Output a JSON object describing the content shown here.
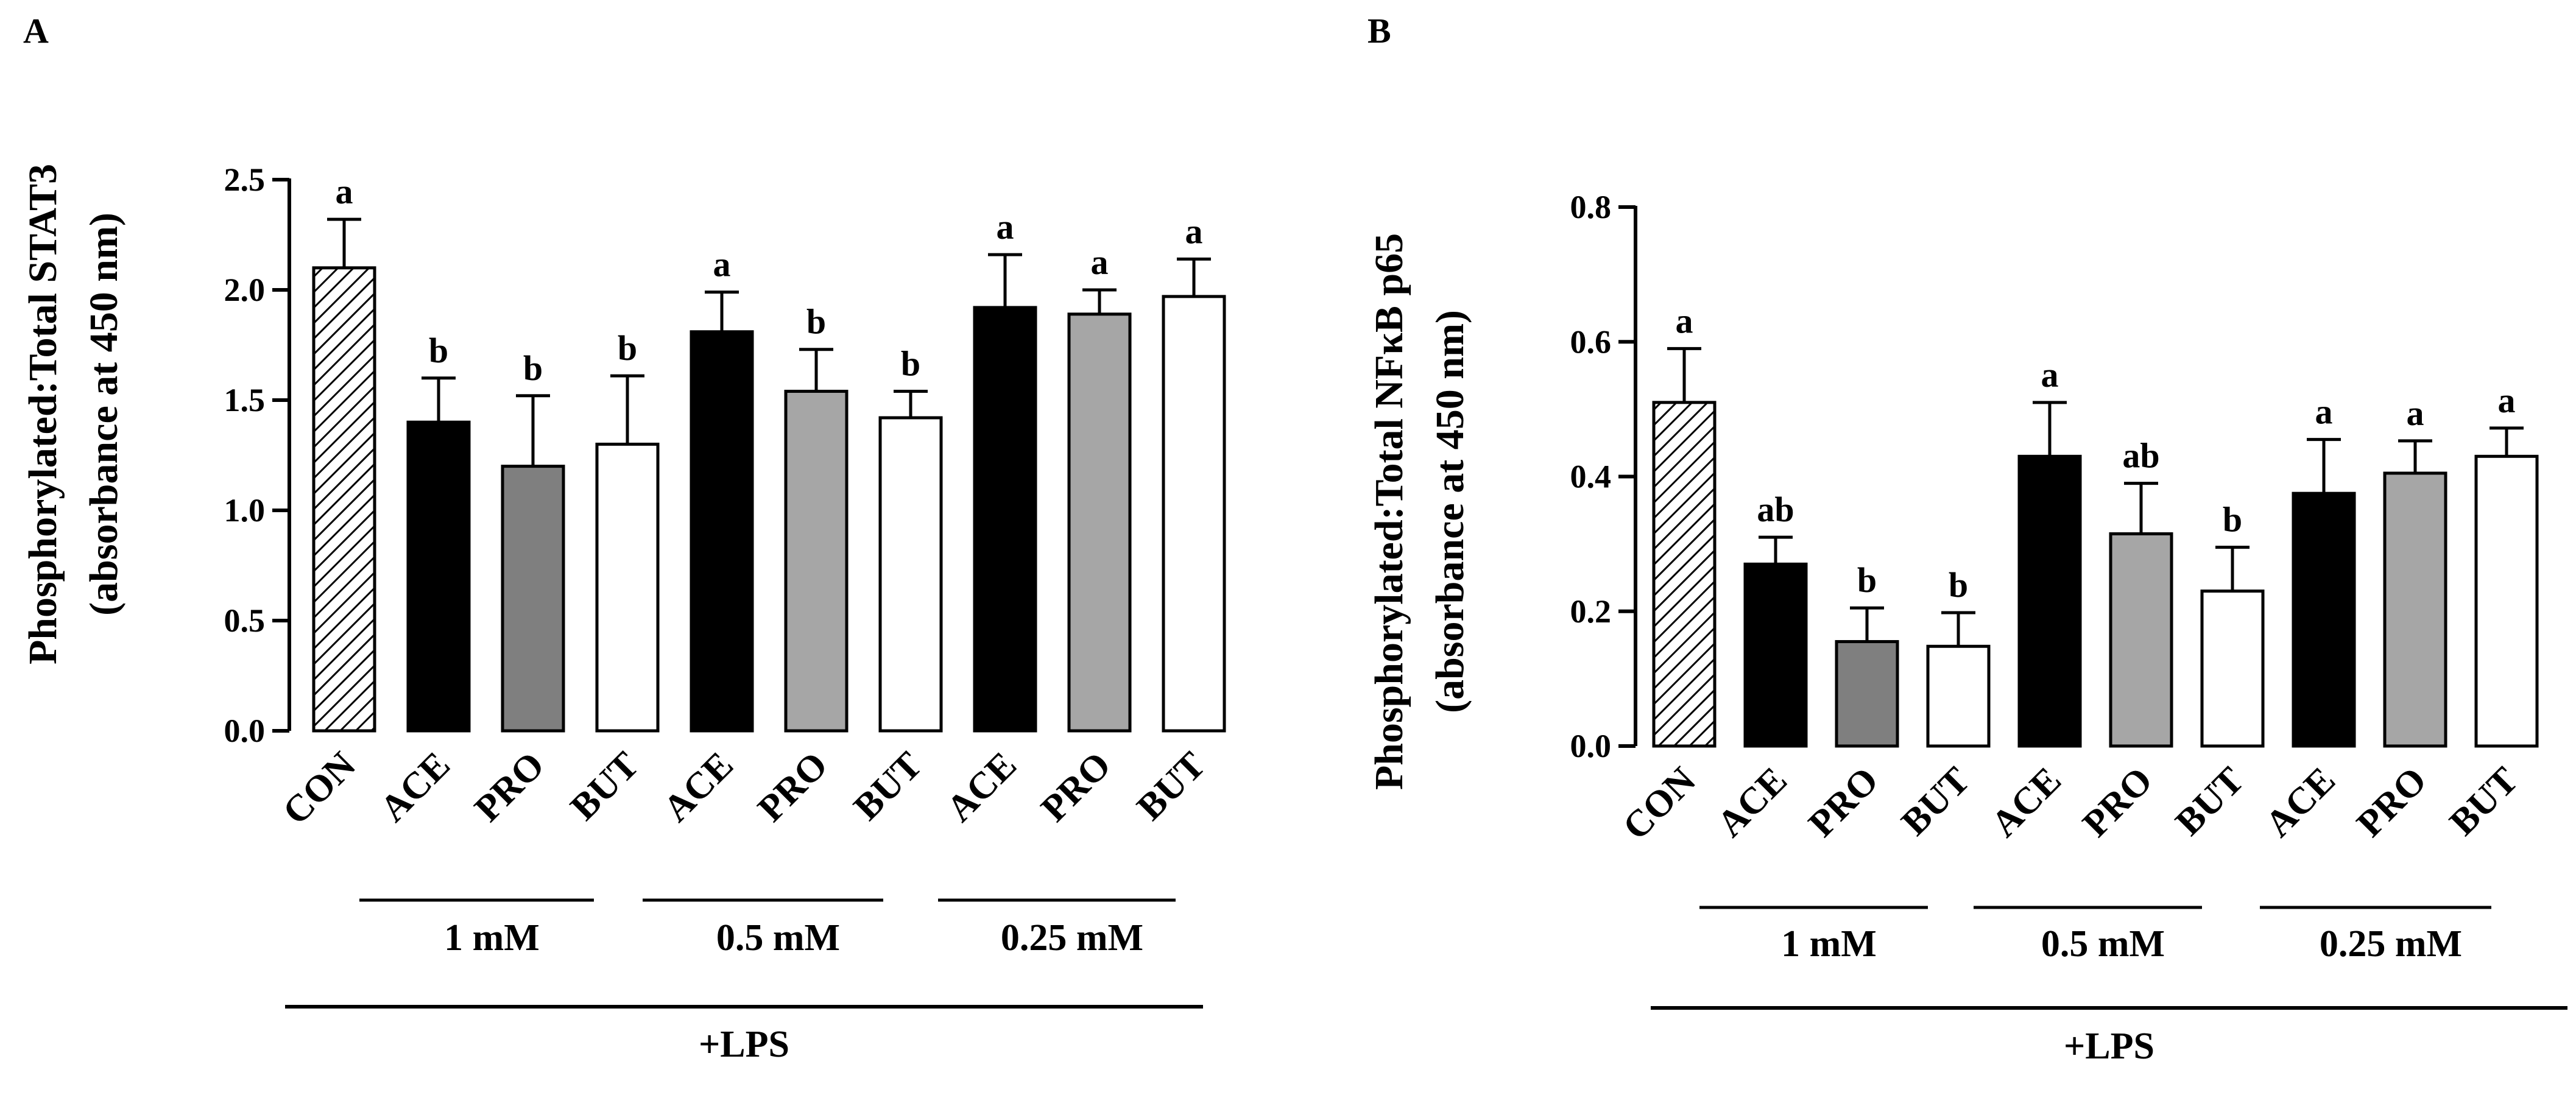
{
  "chart_data": [
    {
      "type": "bar",
      "panel": "A",
      "ylabel_line1": "Phosphorylated:Total STAT3",
      "ylabel_line2": "(absorbance at 450 nm)",
      "ylim": [
        0,
        2.5
      ],
      "yticks": [
        "0.0",
        "0.5",
        "1.0",
        "1.5",
        "2.0",
        "2.5"
      ],
      "categories": [
        "CON",
        "ACE",
        "PRO",
        "BUT",
        "ACE",
        "PRO",
        "BUT",
        "ACE",
        "PRO",
        "BUT"
      ],
      "values": [
        2.1,
        1.4,
        1.2,
        1.3,
        1.81,
        1.54,
        1.42,
        1.92,
        1.89,
        1.97
      ],
      "errors": [
        0.22,
        0.2,
        0.32,
        0.31,
        0.18,
        0.19,
        0.12,
        0.24,
        0.11,
        0.17
      ],
      "significance": [
        "a",
        "b",
        "b",
        "b",
        "a",
        "b",
        "b",
        "a",
        "a",
        "a"
      ],
      "fills": [
        "hatch",
        "#000000",
        "#7f7f7f",
        "#ffffff",
        "#000000",
        "#a6a6a6",
        "#ffffff",
        "#000000",
        "#a6a6a6",
        "#ffffff"
      ],
      "groups": [
        "1 mM",
        "0.5 mM",
        "0.25 mM"
      ],
      "treatment": "+LPS"
    },
    {
      "type": "bar",
      "panel": "B",
      "ylabel_line1": "Phosphorylated:Total NFκB p65",
      "ylabel_line2": "(absorbance at 450 nm)",
      "ylim": [
        0,
        0.8
      ],
      "yticks": [
        "0.0",
        "0.2",
        "0.4",
        "0.6",
        "0.8"
      ],
      "categories": [
        "CON",
        "ACE",
        "PRO",
        "BUT",
        "ACE",
        "PRO",
        "BUT",
        "ACE",
        "PRO",
        "BUT"
      ],
      "values": [
        0.51,
        0.27,
        0.155,
        0.148,
        0.43,
        0.315,
        0.23,
        0.375,
        0.405,
        0.43
      ],
      "errors": [
        0.08,
        0.04,
        0.05,
        0.05,
        0.08,
        0.075,
        0.065,
        0.08,
        0.048,
        0.042
      ],
      "significance": [
        "a",
        "ab",
        "b",
        "b",
        "a",
        "ab",
        "b",
        "a",
        "a",
        "a"
      ],
      "fills": [
        "hatch",
        "#000000",
        "#7f7f7f",
        "#ffffff",
        "#000000",
        "#a6a6a6",
        "#ffffff",
        "#000000",
        "#a6a6a6",
        "#ffffff"
      ],
      "groups": [
        "1 mM",
        "0.5 mM",
        "0.25 mM"
      ],
      "treatment": "+LPS"
    }
  ]
}
